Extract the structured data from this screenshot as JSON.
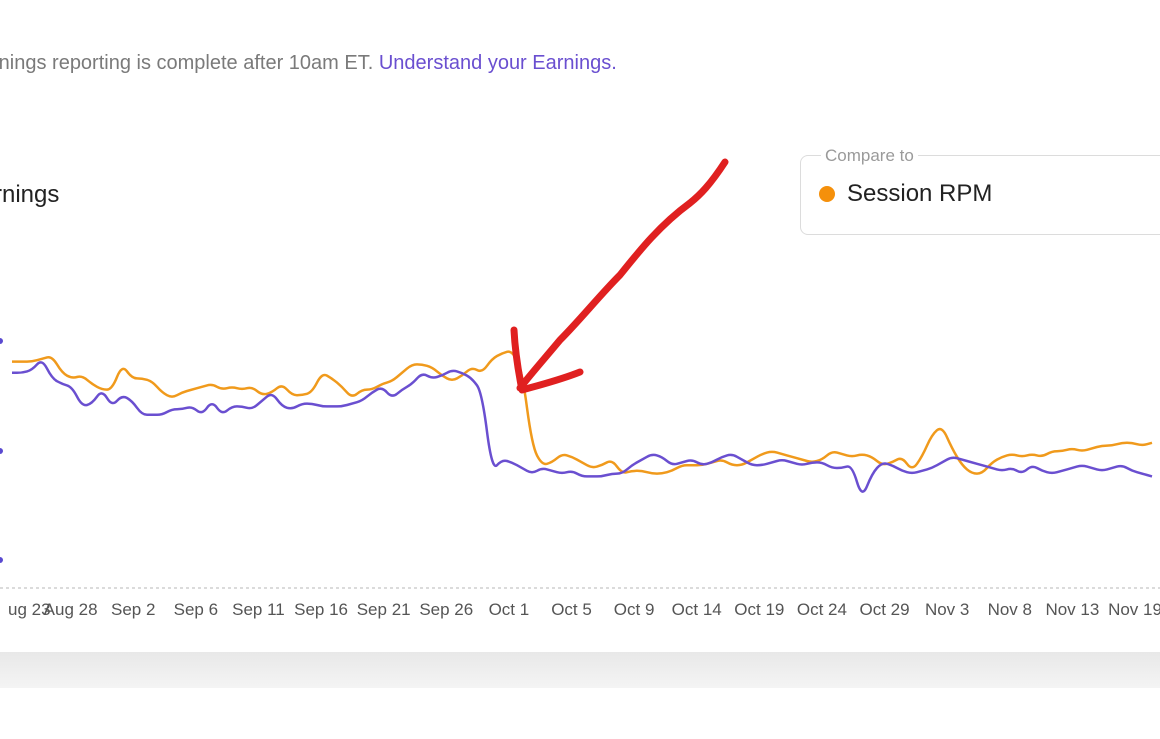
{
  "notice": {
    "text": "rnings reporting is complete after 10am ET.",
    "link": "Understand your Earnings."
  },
  "card": {
    "title": "rnings"
  },
  "compare": {
    "legend": "Compare to",
    "value": "Session RPM",
    "color": "#f5900b"
  },
  "colors": {
    "primary_line": "#6a4fd0",
    "compare_line": "#f09a1c",
    "annotation": "#e02020"
  },
  "annotation": {
    "type": "red-arrow",
    "points_to": "Oct 1 drop"
  },
  "chart_data": {
    "type": "line",
    "x_tick_labels": [
      "ug 23",
      "Aug 28",
      "Sep 2",
      "Sep 6",
      "Sep 11",
      "Sep 16",
      "Sep 21",
      "Sep 26",
      "Oct 1",
      "Oct 5",
      "Oct 9",
      "Oct 14",
      "Oct 19",
      "Oct 24",
      "Oct 29",
      "Nov 3",
      "Nov 8",
      "Nov 13",
      "Nov 19"
    ],
    "ylim": [
      0,
      100
    ],
    "grid": false,
    "series": [
      {
        "name": "Session RPM",
        "color": "#f09a1c",
        "values": [
          78,
          78,
          78,
          79,
          80,
          74,
          72,
          73,
          70,
          68,
          68,
          77,
          72,
          72,
          71,
          67,
          65,
          67,
          68,
          69,
          70,
          68,
          69,
          68,
          69,
          66,
          67,
          70,
          66,
          66,
          67,
          74,
          72,
          69,
          65,
          68,
          68,
          70,
          71,
          74,
          77,
          77,
          76,
          73,
          71,
          73,
          76,
          74,
          79,
          81,
          82,
          75,
          48,
          41,
          42,
          45,
          44,
          42,
          40,
          41,
          43,
          38,
          39,
          39,
          38,
          38,
          39,
          41,
          41,
          41,
          42,
          43,
          41,
          41,
          43,
          45,
          46,
          45,
          44,
          43,
          42,
          43,
          46,
          45,
          44,
          45,
          44,
          41,
          42,
          44,
          39,
          44,
          52,
          55,
          47,
          41,
          38,
          38,
          42,
          44,
          45,
          44,
          45,
          44,
          46,
          46,
          47,
          46,
          47,
          48,
          48,
          49,
          49,
          48,
          49
        ]
      },
      {
        "name": "",
        "color": "#6a4fd0",
        "values": [
          74,
          74,
          75,
          79,
          72,
          70,
          69,
          62,
          63,
          68,
          62,
          66,
          64,
          59,
          59,
          59,
          61,
          61,
          62,
          59,
          64,
          59,
          62,
          62,
          61,
          64,
          67,
          62,
          61,
          63,
          63,
          62,
          62,
          62,
          63,
          64,
          67,
          69,
          65,
          68,
          70,
          74,
          72,
          73,
          75,
          74,
          72,
          67,
          39,
          43,
          42,
          40,
          38,
          40,
          39,
          38,
          39,
          37,
          37,
          37,
          38,
          38,
          41,
          43,
          45,
          44,
          41,
          42,
          43,
          41,
          42,
          44,
          45,
          43,
          41,
          41,
          42,
          43,
          42,
          41,
          42,
          42,
          40,
          40,
          41,
          29,
          38,
          42,
          41,
          39,
          38,
          39,
          40,
          42,
          44,
          43,
          42,
          41,
          40,
          39,
          40,
          38,
          41,
          39,
          38,
          39,
          40,
          41,
          40,
          39,
          40,
          41,
          39,
          38,
          37
        ]
      }
    ]
  }
}
